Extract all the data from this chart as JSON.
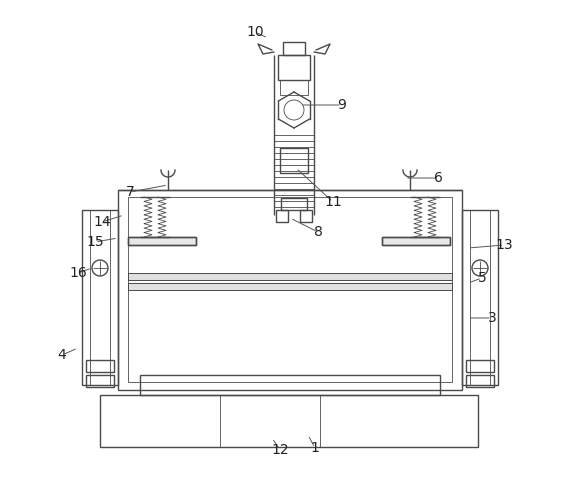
{
  "bg_color": "#ffffff",
  "line_color": "#4a4a4a",
  "line_width": 1.0,
  "thin_line": 0.6,
  "label_fontsize": 10,
  "labels_info": [
    [
      "1",
      308,
      435,
      315,
      448
    ],
    [
      "3",
      468,
      318,
      492,
      318
    ],
    [
      "4",
      78,
      348,
      62,
      355
    ],
    [
      "5",
      468,
      283,
      482,
      278
    ],
    [
      "6",
      405,
      178,
      438,
      178
    ],
    [
      "7",
      168,
      185,
      130,
      192
    ],
    [
      "8",
      290,
      218,
      318,
      232
    ],
    [
      "9",
      300,
      105,
      342,
      105
    ],
    [
      "10",
      268,
      38,
      255,
      32
    ],
    [
      "11",
      296,
      168,
      333,
      202
    ],
    [
      "12",
      272,
      438,
      280,
      450
    ],
    [
      "13",
      468,
      248,
      504,
      245
    ],
    [
      "14",
      124,
      215,
      102,
      222
    ],
    [
      "15",
      118,
      238,
      95,
      242
    ],
    [
      "16",
      92,
      268,
      78,
      273
    ]
  ]
}
